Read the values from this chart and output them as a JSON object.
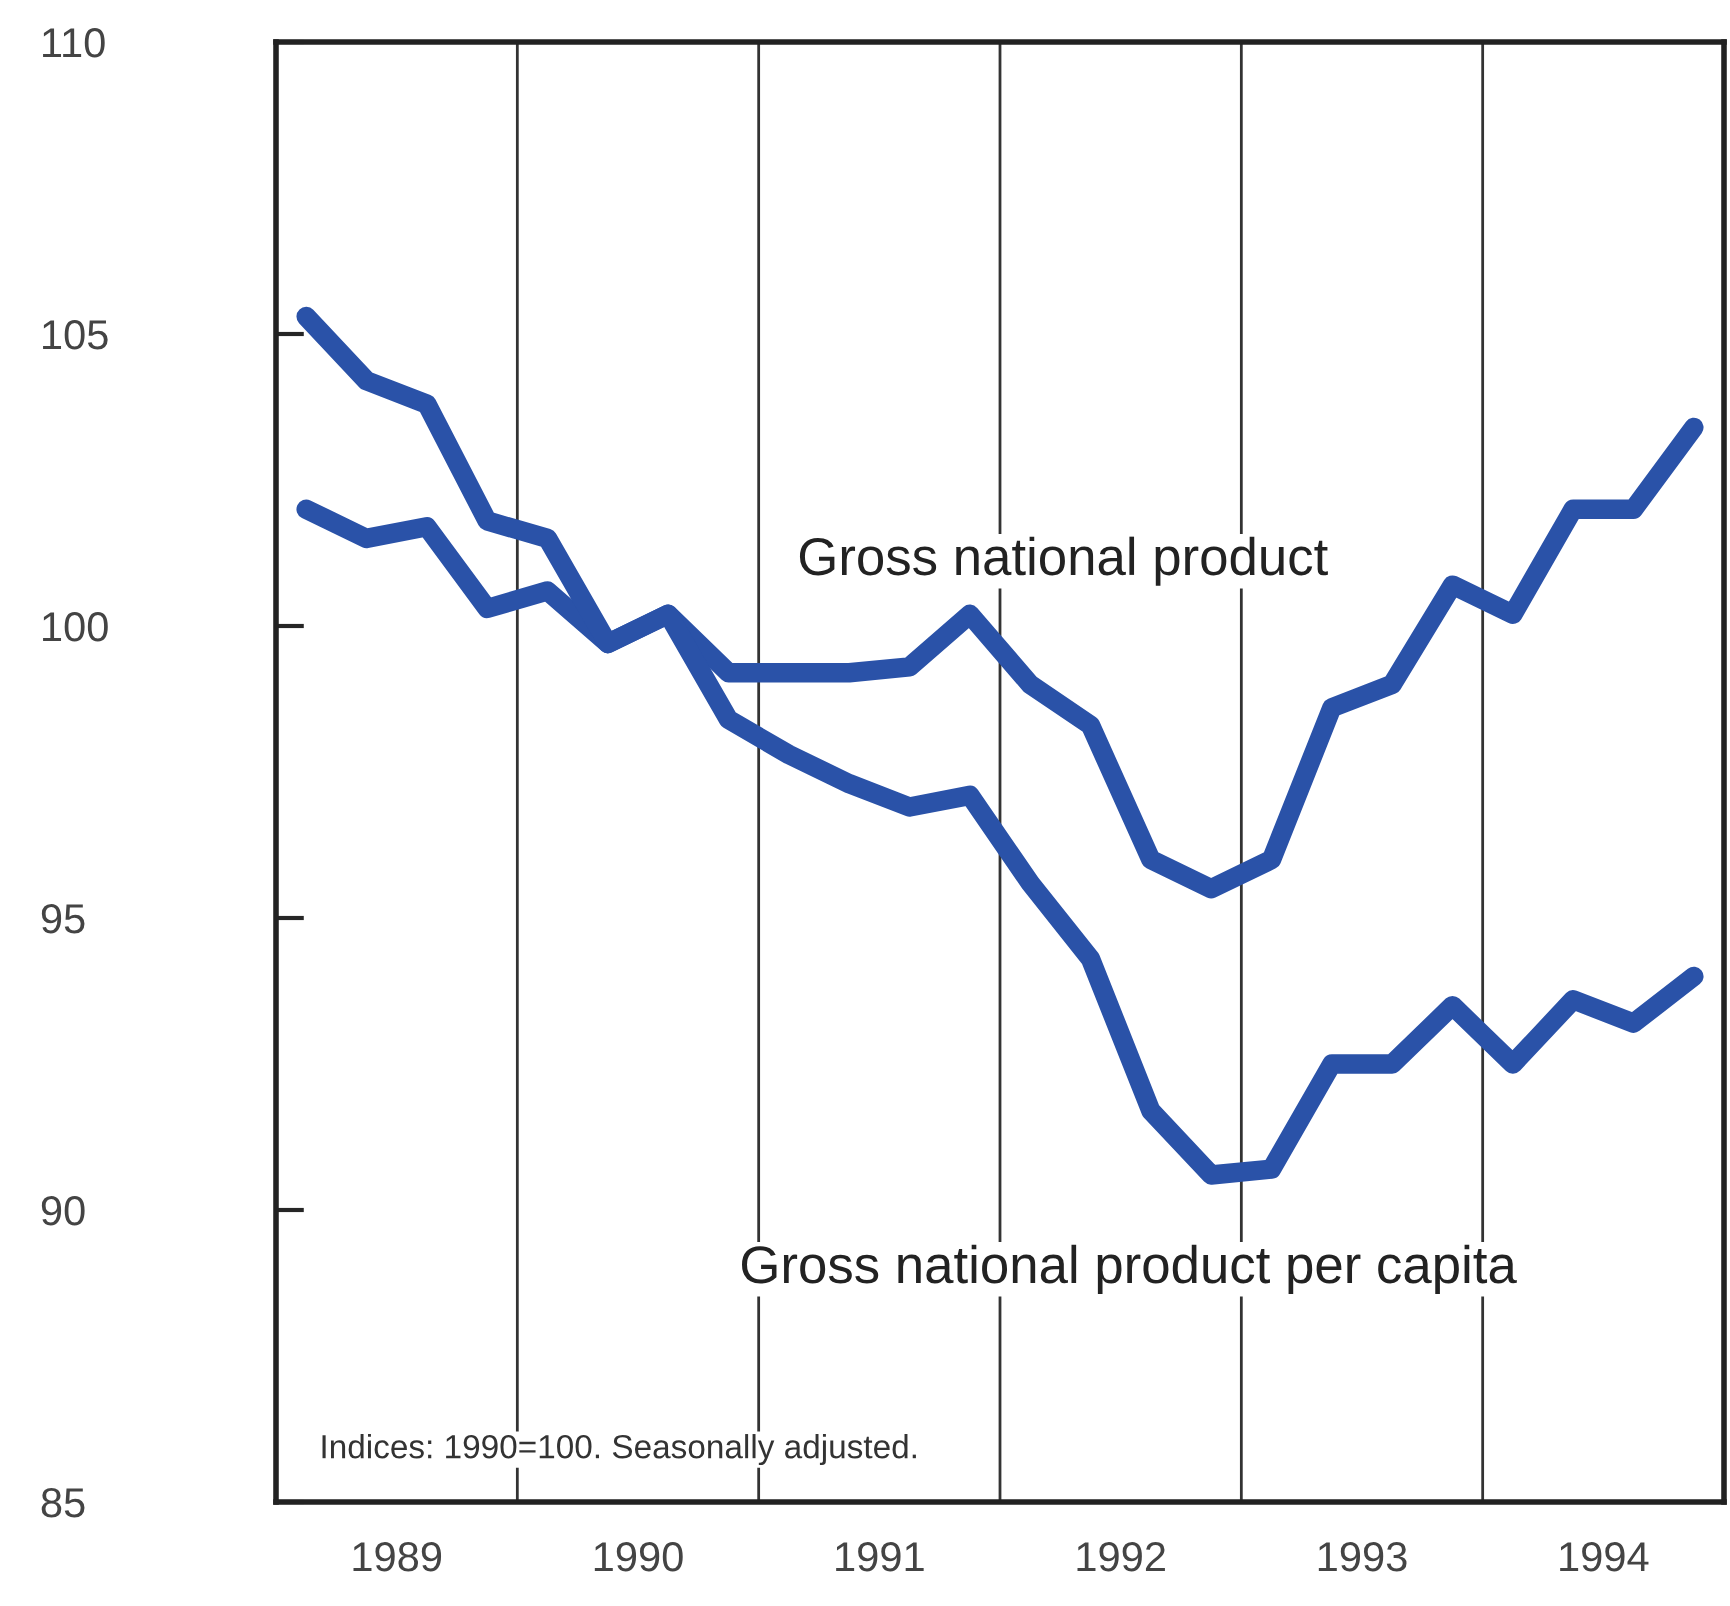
{
  "chart_data": {
    "type": "line",
    "x": [
      1989.125,
      1989.375,
      1989.625,
      1989.875,
      1990.125,
      1990.375,
      1990.625,
      1990.875,
      1991.125,
      1991.375,
      1991.625,
      1991.875,
      1992.125,
      1992.375,
      1992.625,
      1992.875,
      1993.125,
      1993.375,
      1993.625,
      1993.875,
      1994.125,
      1994.375,
      1994.625,
      1994.875
    ],
    "series": [
      {
        "name": "Gross national product",
        "color": "#2a52a8",
        "values": [
          102.0,
          101.5,
          101.7,
          100.3,
          100.6,
          99.7,
          100.2,
          99.2,
          99.2,
          99.2,
          99.3,
          100.2,
          99.0,
          98.3,
          96.0,
          95.5,
          96.0,
          98.6,
          99.0,
          100.7,
          100.2,
          102.0,
          102.0,
          103.4
        ]
      },
      {
        "name": "Gross national product per capita",
        "color": "#2a52a8",
        "values": [
          105.3,
          104.2,
          103.8,
          101.8,
          101.5,
          99.7,
          100.2,
          98.4,
          97.8,
          97.3,
          96.9,
          97.1,
          95.6,
          94.3,
          91.7,
          90.6,
          90.7,
          92.5,
          92.5,
          93.5,
          92.5,
          93.6,
          93.2,
          94.0
        ]
      }
    ],
    "xlim": [
      1989,
      1995
    ],
    "xticks": [
      {
        "value": 1989.5,
        "label": "1989"
      },
      {
        "value": 1990.5,
        "label": "1990"
      },
      {
        "value": 1991.5,
        "label": "1991"
      },
      {
        "value": 1992.5,
        "label": "1992"
      },
      {
        "value": 1993.5,
        "label": "1993"
      },
      {
        "value": 1994.5,
        "label": "1994"
      }
    ],
    "ylim": [
      85,
      110
    ],
    "yticks": [
      85,
      90,
      95,
      100,
      105,
      110
    ],
    "ref_lines": [
      {
        "axis": "x",
        "value": 1990,
        "color": "#333333"
      },
      {
        "axis": "x",
        "value": 1991,
        "color": "#333333"
      },
      {
        "axis": "x",
        "value": 1992,
        "color": "#333333"
      },
      {
        "axis": "x",
        "value": 1993,
        "color": "#333333"
      },
      {
        "axis": "x",
        "value": 1994,
        "color": "#333333"
      }
    ],
    "annotations": [
      "Indices: 1990=100. Seasonally adjusted."
    ],
    "grid": false,
    "legend": false,
    "marker": "none",
    "line_style": "solid"
  }
}
